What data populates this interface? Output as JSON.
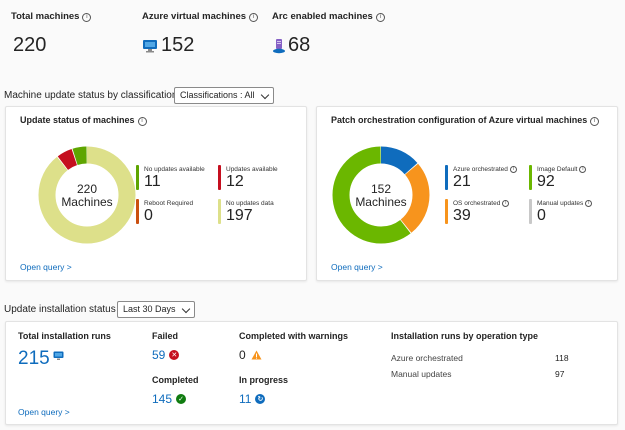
{
  "summary": {
    "total_machines": {
      "label": "Total machines",
      "value": "220"
    },
    "azure_vms": {
      "label": "Azure virtual machines",
      "value": "152"
    },
    "arc_machines": {
      "label": "Arc enabled machines",
      "value": "68"
    }
  },
  "classification_section": {
    "title": "Machine update status by classification",
    "dropdown": "Classifications : All"
  },
  "update_status_card": {
    "title": "Update status of machines",
    "center_value": "220",
    "center_label": "Machines",
    "legend": [
      {
        "label": "No updates available",
        "value": "11",
        "color": "#5ea500"
      },
      {
        "label": "Updates available",
        "value": "12",
        "color": "#c50f1f"
      },
      {
        "label": "Reboot Required",
        "value": "0",
        "color": "#ca5010"
      },
      {
        "label": "No updates data",
        "value": "197",
        "color": "#dde08a"
      }
    ],
    "link": "Open query >"
  },
  "patch_card": {
    "title": "Patch orchestration configuration of Azure virtual machines",
    "center_value": "152",
    "center_label": "Machines",
    "legend": [
      {
        "label": "Azure orchestrated",
        "value": "21",
        "color": "#0f6cbd"
      },
      {
        "label": "Image Default",
        "value": "92",
        "color": "#6bb700"
      },
      {
        "label": "OS orchestrated",
        "value": "39",
        "color": "#f7941d"
      },
      {
        "label": "Manual updates",
        "value": "0",
        "color": "#c8c8c8"
      }
    ],
    "link": "Open query >"
  },
  "install_section": {
    "title": "Update installation status",
    "dropdown": "Last 30 Days"
  },
  "install_card": {
    "total_runs_label": "Total installation runs",
    "total_runs_value": "215",
    "failed_label": "Failed",
    "failed_value": "59",
    "completed_label": "Completed",
    "completed_value": "145",
    "warnings_label": "Completed with warnings",
    "warnings_value": "0",
    "in_progress_label": "In progress",
    "in_progress_value": "11",
    "by_operation_title": "Installation runs by operation type",
    "operation_rows": [
      {
        "label": "Azure orchestrated",
        "value": "118"
      },
      {
        "label": "Manual updates",
        "value": "97"
      }
    ],
    "link": "Open query >"
  }
}
